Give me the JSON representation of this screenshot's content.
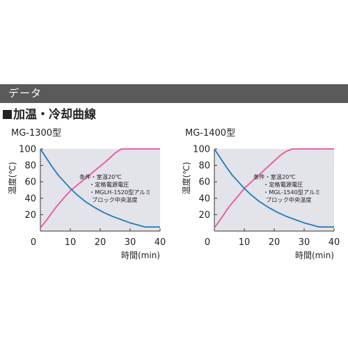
{
  "header": {
    "title": "データ"
  },
  "section": {
    "title": "加温・冷却曲線"
  },
  "colors": {
    "heating": "#e8559a",
    "cooling": "#1f7ab8",
    "plot_bg": "#e3e3ea",
    "header_bg": "#5a5a5a"
  },
  "chart_data": [
    {
      "type": "line",
      "title": "MG-1300型",
      "xlabel": "時間(min)",
      "ylabel": "温度(℃)",
      "xlim": [
        0,
        40
      ],
      "ylim": [
        0,
        100
      ],
      "xticks": [
        0,
        10,
        20,
        30,
        40
      ],
      "yticks": [
        20,
        40,
        60,
        80,
        100
      ],
      "grid": false,
      "annotation": [
        "条件・室温20℃",
        "・定格電源電圧",
        "・MGLH-1520型アルミ",
        "ブロック中央温度"
      ],
      "series": [
        {
          "x": [
            0,
            2,
            5,
            8,
            10,
            13,
            16,
            19,
            22,
            25,
            27,
            30,
            35,
            40
          ],
          "y": [
            4,
            13,
            28,
            41,
            49,
            58,
            67,
            76,
            85,
            95,
            100,
            100,
            100,
            100
          ]
        },
        {
          "x": [
            0,
            2,
            4,
            6,
            8,
            10,
            12,
            15,
            18,
            21,
            24,
            27,
            30,
            33,
            35,
            40
          ],
          "y": [
            100,
            89,
            78,
            68,
            60,
            52,
            45,
            36,
            29,
            23,
            18,
            14,
            10,
            7,
            5,
            5
          ]
        }
      ]
    },
    {
      "type": "line",
      "title": "MG-1400型",
      "xlabel": "時間(min)",
      "ylabel": "温度(℃)",
      "xlim": [
        0,
        40
      ],
      "ylim": [
        0,
        100
      ],
      "xticks": [
        0,
        10,
        20,
        30,
        40
      ],
      "yticks": [
        20,
        40,
        60,
        80,
        100
      ],
      "grid": false,
      "annotation": [
        "条件・室温20℃",
        "・定格電源電圧",
        "・MGL-1540型アルミ",
        "ブロック中央温度"
      ],
      "series": [
        {
          "x": [
            0,
            2,
            5,
            8,
            10,
            13,
            16,
            19,
            22,
            24,
            26,
            30,
            35,
            40
          ],
          "y": [
            4,
            14,
            30,
            43,
            52,
            62,
            72,
            82,
            92,
            97,
            100,
            100,
            100,
            100
          ]
        },
        {
          "x": [
            0,
            2,
            4,
            6,
            8,
            10,
            12,
            15,
            18,
            21,
            24,
            27,
            30,
            33,
            35,
            40
          ],
          "y": [
            100,
            89,
            78,
            68,
            60,
            52,
            45,
            36,
            29,
            23,
            18,
            14,
            10,
            7,
            5,
            5
          ]
        }
      ]
    }
  ]
}
